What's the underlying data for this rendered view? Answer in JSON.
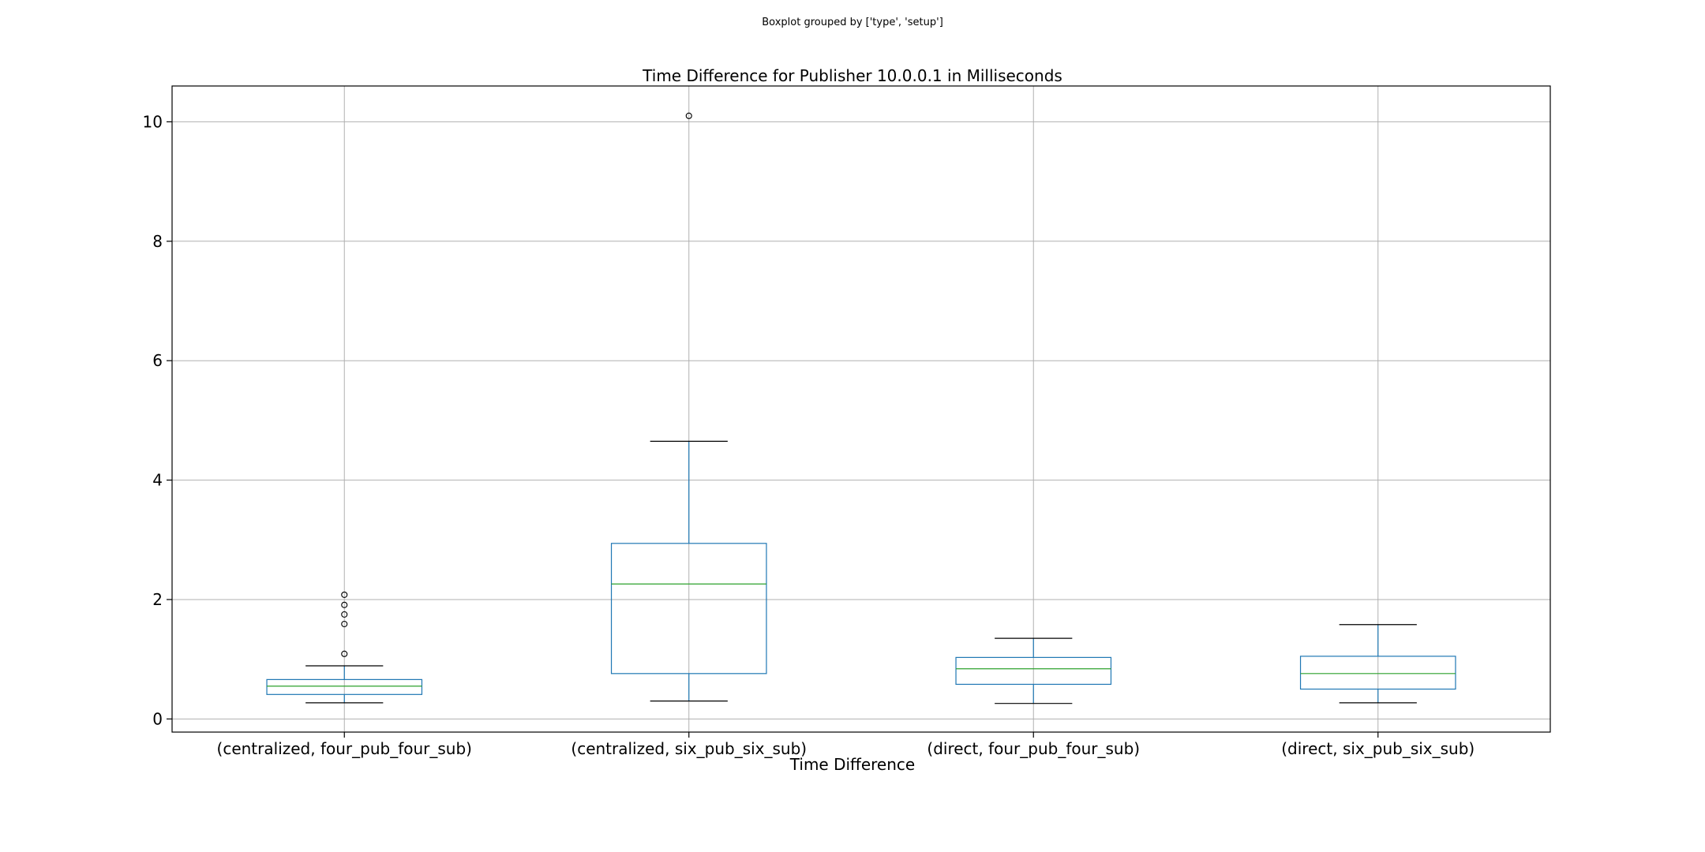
{
  "chart_data": {
    "type": "boxplot",
    "suptitle": "Boxplot grouped by ['type', 'setup']",
    "title": "Time Difference for Publisher 10.0.0.1 in Milliseconds",
    "xlabel": "Time Difference",
    "ylabel": "",
    "ylim": [
      -0.22,
      10.6
    ],
    "yticks": [
      0,
      2,
      4,
      6,
      8,
      10
    ],
    "grid": true,
    "colors": {
      "box": "#1f77b4",
      "median": "#2ca02c",
      "cap": "#000000",
      "flier": "#000000",
      "grid": "#b0b0b0",
      "axes": "#000000"
    },
    "categories": [
      "(centralized, four_pub_four_sub)",
      "(centralized, six_pub_six_sub)",
      "(direct, four_pub_four_sub)",
      "(direct, six_pub_six_sub)"
    ],
    "boxes": [
      {
        "whisker_low": 0.27,
        "q1": 0.41,
        "median": 0.55,
        "q3": 0.66,
        "whisker_high": 0.89,
        "outliers": [
          1.09,
          1.59,
          1.75,
          1.91,
          2.08
        ]
      },
      {
        "whisker_low": 0.3,
        "q1": 0.76,
        "median": 2.26,
        "q3": 2.94,
        "whisker_high": 4.65,
        "outliers": [
          10.1
        ]
      },
      {
        "whisker_low": 0.26,
        "q1": 0.58,
        "median": 0.84,
        "q3": 1.03,
        "whisker_high": 1.35,
        "outliers": []
      },
      {
        "whisker_low": 0.27,
        "q1": 0.5,
        "median": 0.76,
        "q3": 1.05,
        "whisker_high": 1.58,
        "outliers": []
      }
    ]
  }
}
